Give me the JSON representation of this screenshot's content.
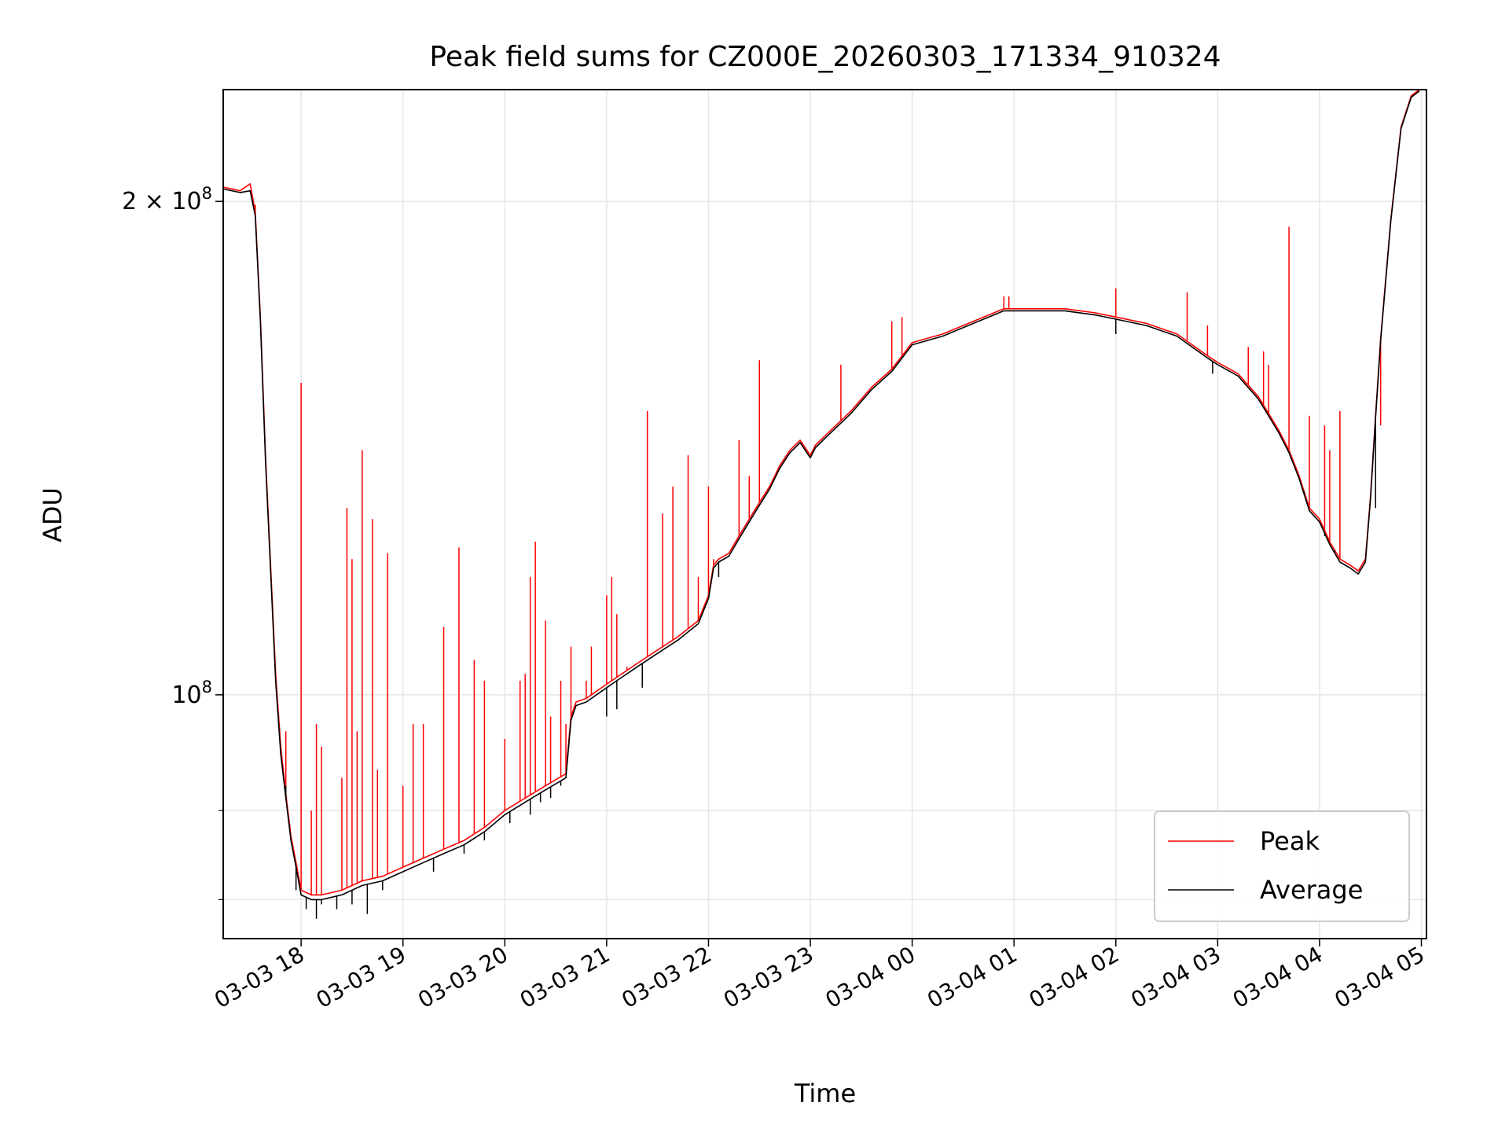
{
  "chart_data": {
    "type": "line",
    "title": "Peak field sums for CZ000E_20260303_171334_910324",
    "xlabel": "Time",
    "ylabel": "ADU",
    "yscale": "log",
    "ylim": [
      71000000,
      234000000
    ],
    "xlim_hours": [
      17.235,
      29.05
    ],
    "grid": true,
    "legend_position": "lower right",
    "x_ticks": [
      {
        "hour": 18,
        "label": "03-03 18"
      },
      {
        "hour": 19,
        "label": "03-03 19"
      },
      {
        "hour": 20,
        "label": "03-03 20"
      },
      {
        "hour": 21,
        "label": "03-03 21"
      },
      {
        "hour": 22,
        "label": "03-03 22"
      },
      {
        "hour": 23,
        "label": "03-03 23"
      },
      {
        "hour": 24,
        "label": "03-04 00"
      },
      {
        "hour": 25,
        "label": "03-04 01"
      },
      {
        "hour": 26,
        "label": "03-04 02"
      },
      {
        "hour": 27,
        "label": "03-04 03"
      },
      {
        "hour": 28,
        "label": "03-04 04"
      },
      {
        "hour": 29,
        "label": "03-04 05"
      }
    ],
    "y_ticks_major": [
      {
        "value": 100000000,
        "mantissa": "",
        "exp": "8",
        "base": "10"
      },
      {
        "value": 200000000,
        "mantissa": "2 × ",
        "exp": "8",
        "base": "10"
      }
    ],
    "y_ticks_minor": [
      75000000,
      85000000
    ],
    "series": [
      {
        "name": "Peak",
        "color": "#ff0000",
        "points": [
          [
            17.24,
            204
          ],
          [
            17.4,
            203
          ],
          [
            17.5,
            205
          ],
          [
            17.55,
            197
          ],
          [
            17.6,
            170
          ],
          [
            17.65,
            140
          ],
          [
            17.7,
            120
          ],
          [
            17.75,
            103
          ],
          [
            17.8,
            93
          ],
          [
            17.85,
            87
          ],
          [
            17.9,
            82
          ],
          [
            17.95,
            79
          ],
          [
            18.0,
            76
          ],
          [
            18.1,
            75.5
          ],
          [
            18.2,
            75.5
          ],
          [
            18.4,
            76
          ],
          [
            18.6,
            77
          ],
          [
            18.8,
            77.5
          ],
          [
            19.0,
            78.5
          ],
          [
            19.2,
            79.5
          ],
          [
            19.4,
            80.5
          ],
          [
            19.6,
            81.5
          ],
          [
            19.8,
            83
          ],
          [
            20.0,
            85
          ],
          [
            20.2,
            86.5
          ],
          [
            20.4,
            88
          ],
          [
            20.6,
            89.5
          ],
          [
            20.65,
            97
          ],
          [
            20.7,
            99
          ],
          [
            20.8,
            99.5
          ],
          [
            20.9,
            100.5
          ],
          [
            21.0,
            101.5
          ],
          [
            21.1,
            102.5
          ],
          [
            21.2,
            103.5
          ],
          [
            21.3,
            104.5
          ],
          [
            21.5,
            106.5
          ],
          [
            21.7,
            108.5
          ],
          [
            21.9,
            111
          ],
          [
            22.0,
            115
          ],
          [
            22.05,
            120
          ],
          [
            22.1,
            121
          ],
          [
            22.2,
            122
          ],
          [
            22.3,
            125
          ],
          [
            22.4,
            128
          ],
          [
            22.5,
            131
          ],
          [
            22.6,
            134
          ],
          [
            22.7,
            138
          ],
          [
            22.8,
            141
          ],
          [
            22.9,
            143
          ],
          [
            23.0,
            140
          ],
          [
            23.05,
            142
          ],
          [
            23.2,
            145
          ],
          [
            23.4,
            149
          ],
          [
            23.6,
            154
          ],
          [
            23.8,
            158
          ],
          [
            24.0,
            164
          ],
          [
            24.3,
            166
          ],
          [
            24.6,
            169
          ],
          [
            24.9,
            172
          ],
          [
            25.2,
            172
          ],
          [
            25.5,
            172
          ],
          [
            25.8,
            171
          ],
          [
            26.0,
            170
          ],
          [
            26.3,
            168.5
          ],
          [
            26.6,
            166
          ],
          [
            26.9,
            161
          ],
          [
            27.0,
            159.5
          ],
          [
            27.2,
            157
          ],
          [
            27.4,
            152
          ],
          [
            27.6,
            145
          ],
          [
            27.7,
            141
          ],
          [
            27.8,
            136
          ],
          [
            27.9,
            130
          ],
          [
            28.0,
            128
          ],
          [
            28.1,
            124
          ],
          [
            28.2,
            121
          ],
          [
            28.3,
            120
          ],
          [
            28.38,
            119
          ],
          [
            28.45,
            121
          ],
          [
            28.5,
            132
          ],
          [
            28.55,
            148
          ],
          [
            28.6,
            165
          ],
          [
            28.7,
            195
          ],
          [
            28.8,
            222
          ],
          [
            28.9,
            232
          ],
          [
            28.98,
            234
          ]
        ],
        "spikes": [
          [
            17.5,
            205
          ],
          [
            17.55,
            199
          ],
          [
            17.85,
            95
          ],
          [
            18.0,
            155
          ],
          [
            18.1,
            85
          ],
          [
            18.15,
            96
          ],
          [
            18.2,
            93
          ],
          [
            18.4,
            89
          ],
          [
            18.45,
            130
          ],
          [
            18.5,
            121
          ],
          [
            18.55,
            95
          ],
          [
            18.6,
            141
          ],
          [
            18.7,
            128
          ],
          [
            18.75,
            90
          ],
          [
            18.85,
            122
          ],
          [
            19.0,
            88
          ],
          [
            19.1,
            96
          ],
          [
            19.2,
            96
          ],
          [
            19.4,
            110
          ],
          [
            19.55,
            123
          ],
          [
            19.7,
            105
          ],
          [
            19.8,
            102
          ],
          [
            20.0,
            94
          ],
          [
            20.15,
            102
          ],
          [
            20.2,
            103
          ],
          [
            20.25,
            118
          ],
          [
            20.3,
            124
          ],
          [
            20.4,
            111
          ],
          [
            20.45,
            97
          ],
          [
            20.55,
            102
          ],
          [
            20.6,
            96
          ],
          [
            20.65,
            107
          ],
          [
            20.8,
            102
          ],
          [
            20.85,
            107
          ],
          [
            21.0,
            115
          ],
          [
            21.05,
            118
          ],
          [
            21.1,
            112
          ],
          [
            21.2,
            104
          ],
          [
            21.4,
            149
          ],
          [
            21.55,
            129
          ],
          [
            21.65,
            134
          ],
          [
            21.8,
            140
          ],
          [
            21.9,
            118
          ],
          [
            22.0,
            134
          ],
          [
            22.05,
            121
          ],
          [
            22.3,
            143
          ],
          [
            22.4,
            136
          ],
          [
            22.5,
            160
          ],
          [
            23.3,
            159
          ],
          [
            23.8,
            169
          ],
          [
            23.9,
            170
          ],
          [
            24.9,
            175
          ],
          [
            24.95,
            175
          ],
          [
            26.0,
            177
          ],
          [
            26.7,
            176
          ],
          [
            26.9,
            168
          ],
          [
            27.3,
            163
          ],
          [
            27.45,
            162
          ],
          [
            27.5,
            159
          ],
          [
            27.7,
            193
          ],
          [
            27.9,
            148
          ],
          [
            28.05,
            146
          ],
          [
            28.1,
            141
          ],
          [
            28.2,
            149
          ],
          [
            28.55,
            143
          ],
          [
            28.6,
            146
          ]
        ]
      },
      {
        "name": "Average",
        "color": "#000000",
        "points": [
          [
            17.24,
            203.5
          ],
          [
            17.4,
            202.5
          ],
          [
            17.5,
            203
          ],
          [
            17.55,
            196
          ],
          [
            17.6,
            169
          ],
          [
            17.65,
            139
          ],
          [
            17.7,
            119
          ],
          [
            17.75,
            102
          ],
          [
            17.8,
            92
          ],
          [
            17.85,
            86.5
          ],
          [
            17.9,
            81.5
          ],
          [
            17.95,
            78.5
          ],
          [
            18.0,
            75.5
          ],
          [
            18.1,
            75
          ],
          [
            18.2,
            75
          ],
          [
            18.4,
            75.5
          ],
          [
            18.6,
            76.5
          ],
          [
            18.8,
            77
          ],
          [
            19.0,
            78
          ],
          [
            19.2,
            79
          ],
          [
            19.4,
            80
          ],
          [
            19.6,
            81
          ],
          [
            19.8,
            82.5
          ],
          [
            20.0,
            84.5
          ],
          [
            20.2,
            86
          ],
          [
            20.4,
            87.5
          ],
          [
            20.6,
            89
          ],
          [
            20.65,
            96.5
          ],
          [
            20.7,
            98.5
          ],
          [
            20.8,
            99
          ],
          [
            20.9,
            100
          ],
          [
            21.0,
            101
          ],
          [
            21.1,
            102
          ],
          [
            21.2,
            103
          ],
          [
            21.3,
            104
          ],
          [
            21.5,
            106
          ],
          [
            21.7,
            108
          ],
          [
            21.9,
            110.5
          ],
          [
            22.0,
            114.5
          ],
          [
            22.05,
            119.5
          ],
          [
            22.1,
            120.5
          ],
          [
            22.2,
            121.5
          ],
          [
            22.3,
            124.5
          ],
          [
            22.4,
            127.5
          ],
          [
            22.5,
            130.5
          ],
          [
            22.6,
            133.5
          ],
          [
            22.7,
            137.5
          ],
          [
            22.8,
            140.5
          ],
          [
            22.9,
            142.5
          ],
          [
            23.0,
            139.5
          ],
          [
            23.05,
            141.5
          ],
          [
            23.2,
            144.5
          ],
          [
            23.4,
            148.5
          ],
          [
            23.6,
            153.5
          ],
          [
            23.8,
            157.5
          ],
          [
            24.0,
            163.5
          ],
          [
            24.3,
            165.5
          ],
          [
            24.6,
            168.5
          ],
          [
            24.9,
            171.5
          ],
          [
            25.2,
            171.5
          ],
          [
            25.5,
            171.5
          ],
          [
            25.8,
            170.5
          ],
          [
            26.0,
            169.5
          ],
          [
            26.3,
            168
          ],
          [
            26.6,
            165.5
          ],
          [
            26.9,
            160.5
          ],
          [
            27.0,
            159
          ],
          [
            27.2,
            156.5
          ],
          [
            27.4,
            151.5
          ],
          [
            27.6,
            144.5
          ],
          [
            27.7,
            140.5
          ],
          [
            27.8,
            135.5
          ],
          [
            27.9,
            129.5
          ],
          [
            28.0,
            127.5
          ],
          [
            28.1,
            123.5
          ],
          [
            28.2,
            120.5
          ],
          [
            28.3,
            119.5
          ],
          [
            28.38,
            118.5
          ],
          [
            28.45,
            120.5
          ],
          [
            28.5,
            131.5
          ],
          [
            28.55,
            147.5
          ],
          [
            28.6,
            164.5
          ],
          [
            28.7,
            194.5
          ],
          [
            28.8,
            221.5
          ],
          [
            28.9,
            231.5
          ],
          [
            28.98,
            233.5
          ]
        ],
        "dips": [
          [
            17.85,
            88
          ],
          [
            17.95,
            76
          ],
          [
            18.05,
            74
          ],
          [
            18.15,
            73
          ],
          [
            18.2,
            74.5
          ],
          [
            18.35,
            74
          ],
          [
            18.5,
            74.5
          ],
          [
            18.65,
            73.5
          ],
          [
            18.8,
            76
          ],
          [
            19.3,
            78
          ],
          [
            19.6,
            80
          ],
          [
            19.8,
            81.5
          ],
          [
            20.05,
            83.5
          ],
          [
            20.25,
            84.5
          ],
          [
            20.35,
            86
          ],
          [
            20.45,
            86.5
          ],
          [
            20.55,
            88
          ],
          [
            21.0,
            97
          ],
          [
            21.1,
            98
          ],
          [
            21.35,
            101
          ],
          [
            22.1,
            118
          ],
          [
            26.0,
            166
          ],
          [
            26.95,
            157
          ],
          [
            27.75,
            138
          ],
          [
            27.85,
            133
          ],
          [
            28.05,
            125
          ],
          [
            28.15,
            122.5
          ],
          [
            28.55,
            130
          ]
        ]
      }
    ]
  }
}
